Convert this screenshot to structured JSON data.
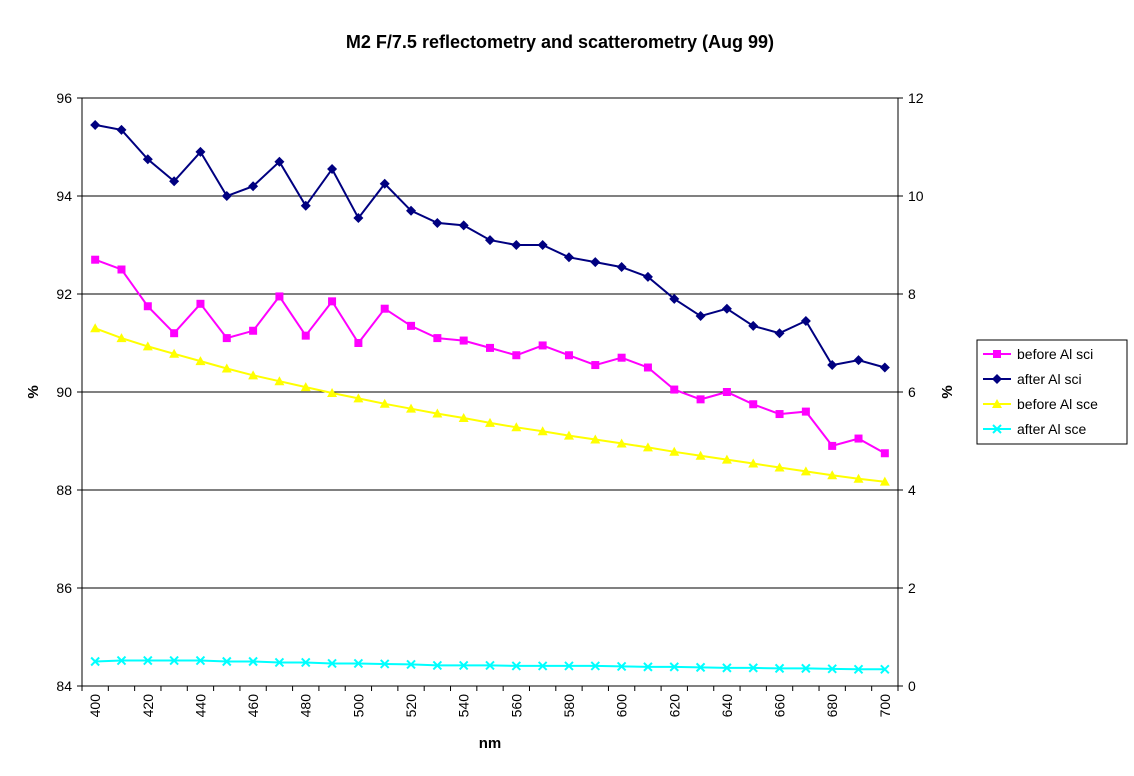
{
  "chart_data": {
    "type": "line",
    "title": "M2 F/7.5 reflectometry and scatterometry (Aug 99)",
    "xlabel": "nm",
    "ylabel_left": "%",
    "ylabel_right": "%",
    "categories": [
      400,
      410,
      420,
      430,
      440,
      450,
      460,
      470,
      480,
      490,
      500,
      510,
      520,
      530,
      540,
      550,
      560,
      570,
      580,
      590,
      600,
      610,
      620,
      630,
      640,
      650,
      660,
      670,
      680,
      690,
      700
    ],
    "x_tick_labels": [
      "400",
      "420",
      "440",
      "460",
      "480",
      "500",
      "520",
      "540",
      "560",
      "580",
      "600",
      "620",
      "640",
      "660",
      "680",
      "700"
    ],
    "ylim_left": [
      84,
      96
    ],
    "yticks_left": [
      "84",
      "86",
      "88",
      "90",
      "92",
      "94",
      "96"
    ],
    "ylim_right": [
      0,
      12
    ],
    "yticks_right": [
      "0",
      "2",
      "4",
      "6",
      "8",
      "10",
      "12"
    ],
    "grid": "horizontal",
    "legend_position": "right",
    "series": [
      {
        "name": "before Al sci",
        "axis": "left",
        "color": "#ff00ff",
        "marker": "square",
        "values": [
          92.7,
          92.5,
          91.75,
          91.2,
          91.8,
          91.1,
          91.25,
          91.95,
          91.15,
          91.85,
          91.0,
          91.7,
          91.35,
          91.1,
          91.05,
          90.9,
          90.75,
          90.95,
          90.75,
          90.55,
          90.7,
          90.5,
          90.05,
          89.85,
          90.0,
          89.75,
          89.55,
          89.6,
          88.9,
          89.05,
          88.75
        ]
      },
      {
        "name": "after Al sci",
        "axis": "left",
        "color": "#000080",
        "marker": "diamond",
        "values": [
          95.45,
          95.35,
          94.75,
          94.3,
          94.9,
          94.0,
          94.2,
          94.7,
          93.8,
          94.55,
          93.55,
          94.25,
          93.7,
          93.45,
          93.4,
          93.1,
          93.0,
          93.0,
          92.75,
          92.65,
          92.55,
          92.35,
          91.9,
          91.55,
          91.7,
          91.35,
          91.2,
          91.45,
          90.55,
          90.65,
          90.5
        ]
      },
      {
        "name": "before Al sce",
        "axis": "right",
        "color": "#ffff00",
        "marker": "triangle",
        "values": [
          7.3,
          7.1,
          6.93,
          6.78,
          6.63,
          6.48,
          6.34,
          6.22,
          6.1,
          5.98,
          5.87,
          5.76,
          5.66,
          5.56,
          5.47,
          5.37,
          5.28,
          5.2,
          5.11,
          5.03,
          4.95,
          4.87,
          4.78,
          4.7,
          4.62,
          4.54,
          4.46,
          4.38,
          4.3,
          4.23,
          4.17
        ]
      },
      {
        "name": "after Al sce",
        "axis": "right",
        "color": "#00ffff",
        "marker": "x",
        "values": [
          0.5,
          0.52,
          0.52,
          0.52,
          0.52,
          0.5,
          0.5,
          0.48,
          0.48,
          0.46,
          0.46,
          0.45,
          0.44,
          0.42,
          0.42,
          0.42,
          0.41,
          0.41,
          0.41,
          0.41,
          0.4,
          0.39,
          0.39,
          0.38,
          0.37,
          0.37,
          0.36,
          0.36,
          0.35,
          0.34,
          0.34
        ]
      }
    ]
  }
}
